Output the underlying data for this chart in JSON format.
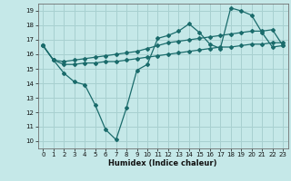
{
  "title": "",
  "xlabel": "Humidex (Indice chaleur)",
  "bg_color": "#c5e8e8",
  "grid_color": "#a8d0d0",
  "line_color": "#1a6b6b",
  "xlim": [
    -0.5,
    23.5
  ],
  "ylim": [
    9.5,
    19.5
  ],
  "xticks": [
    0,
    1,
    2,
    3,
    4,
    5,
    6,
    7,
    8,
    9,
    10,
    11,
    12,
    13,
    14,
    15,
    16,
    17,
    18,
    19,
    20,
    21,
    22,
    23
  ],
  "yticks": [
    10,
    11,
    12,
    13,
    14,
    15,
    16,
    17,
    18,
    19
  ],
  "line1_x": [
    0,
    1,
    2,
    3,
    4,
    5,
    6,
    7,
    8,
    9,
    10,
    11,
    12,
    13,
    14,
    15,
    16,
    17,
    18,
    19,
    20,
    21,
    22,
    23
  ],
  "line1_y": [
    16.6,
    15.6,
    14.7,
    14.1,
    13.9,
    12.5,
    10.8,
    10.1,
    12.3,
    14.9,
    15.3,
    17.1,
    17.3,
    17.6,
    18.1,
    17.5,
    16.7,
    16.4,
    19.2,
    19.0,
    18.7,
    17.5,
    16.5,
    16.6
  ],
  "line2_x": [
    0,
    1,
    2,
    3,
    4,
    5,
    6,
    7,
    8,
    9,
    10,
    11,
    12,
    13,
    14,
    15,
    16,
    17,
    18,
    19,
    20,
    21,
    22,
    23
  ],
  "line2_y": [
    16.6,
    15.6,
    15.3,
    15.3,
    15.4,
    15.4,
    15.5,
    15.5,
    15.6,
    15.7,
    15.8,
    15.9,
    16.0,
    16.1,
    16.2,
    16.3,
    16.4,
    16.5,
    16.5,
    16.6,
    16.7,
    16.7,
    16.8,
    16.8
  ],
  "line3_x": [
    0,
    1,
    2,
    3,
    4,
    5,
    6,
    7,
    8,
    9,
    10,
    11,
    12,
    13,
    14,
    15,
    16,
    17,
    18,
    19,
    20,
    21,
    22,
    23
  ],
  "line3_y": [
    16.6,
    15.6,
    15.5,
    15.6,
    15.7,
    15.8,
    15.9,
    16.0,
    16.1,
    16.2,
    16.4,
    16.6,
    16.8,
    16.9,
    17.0,
    17.1,
    17.2,
    17.3,
    17.4,
    17.5,
    17.6,
    17.6,
    17.7,
    16.6
  ]
}
